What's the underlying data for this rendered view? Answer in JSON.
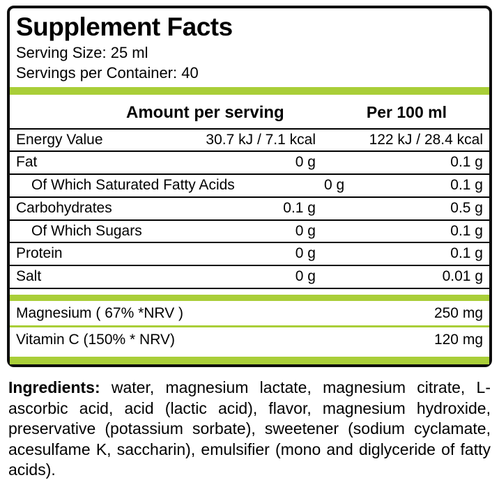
{
  "colors": {
    "accent_green": "#a9ce38"
  },
  "label": {
    "title": "Supplement Facts",
    "serving_size": "Serving Size: 25 ml",
    "servings_per_container": "Servings per Container: 40"
  },
  "table": {
    "header": {
      "amount": "Amount per serving",
      "per100": "Per 100 ml"
    },
    "rows": [
      {
        "name": "Energy Value",
        "amount": "30.7  kJ / 7.1  kcal",
        "per100": "122 kJ / 28.4 kcal"
      },
      {
        "name": "Fat",
        "amount": "0 g",
        "per100": "0.1 g"
      },
      {
        "name": "Of Which Saturated Fatty Acids",
        "amount": "0 g",
        "per100": "0.1 g"
      },
      {
        "name": "Carbohydrates",
        "amount": "0.1 g",
        "per100": "0.5 g"
      },
      {
        "name": "Of Which Sugars",
        "amount": "0 g",
        "per100": "0.1 g"
      },
      {
        "name": "Protein",
        "amount": "0 g",
        "per100": "0.1 g"
      },
      {
        "name": "Salt",
        "amount": "0 g",
        "per100": "0.01 g"
      }
    ],
    "minerals": [
      {
        "name": "Magnesium ( 67% *NRV )",
        "value": "250 mg"
      },
      {
        "name": "Vitamin C  (150% * NRV)",
        "value": "120 mg"
      }
    ]
  },
  "ingredients": {
    "label": "Ingredients:",
    "text": " water, magnesium lactate, magnesium citrate, L-ascorbic acid, acid (lactic acid), flavor, magnesium hydroxide, preservative (potassium sorbate), sweetener (sodium cyclamate, acesulfame K, saccharin), emulsifier (mono and diglyceride of fatty acids)."
  }
}
